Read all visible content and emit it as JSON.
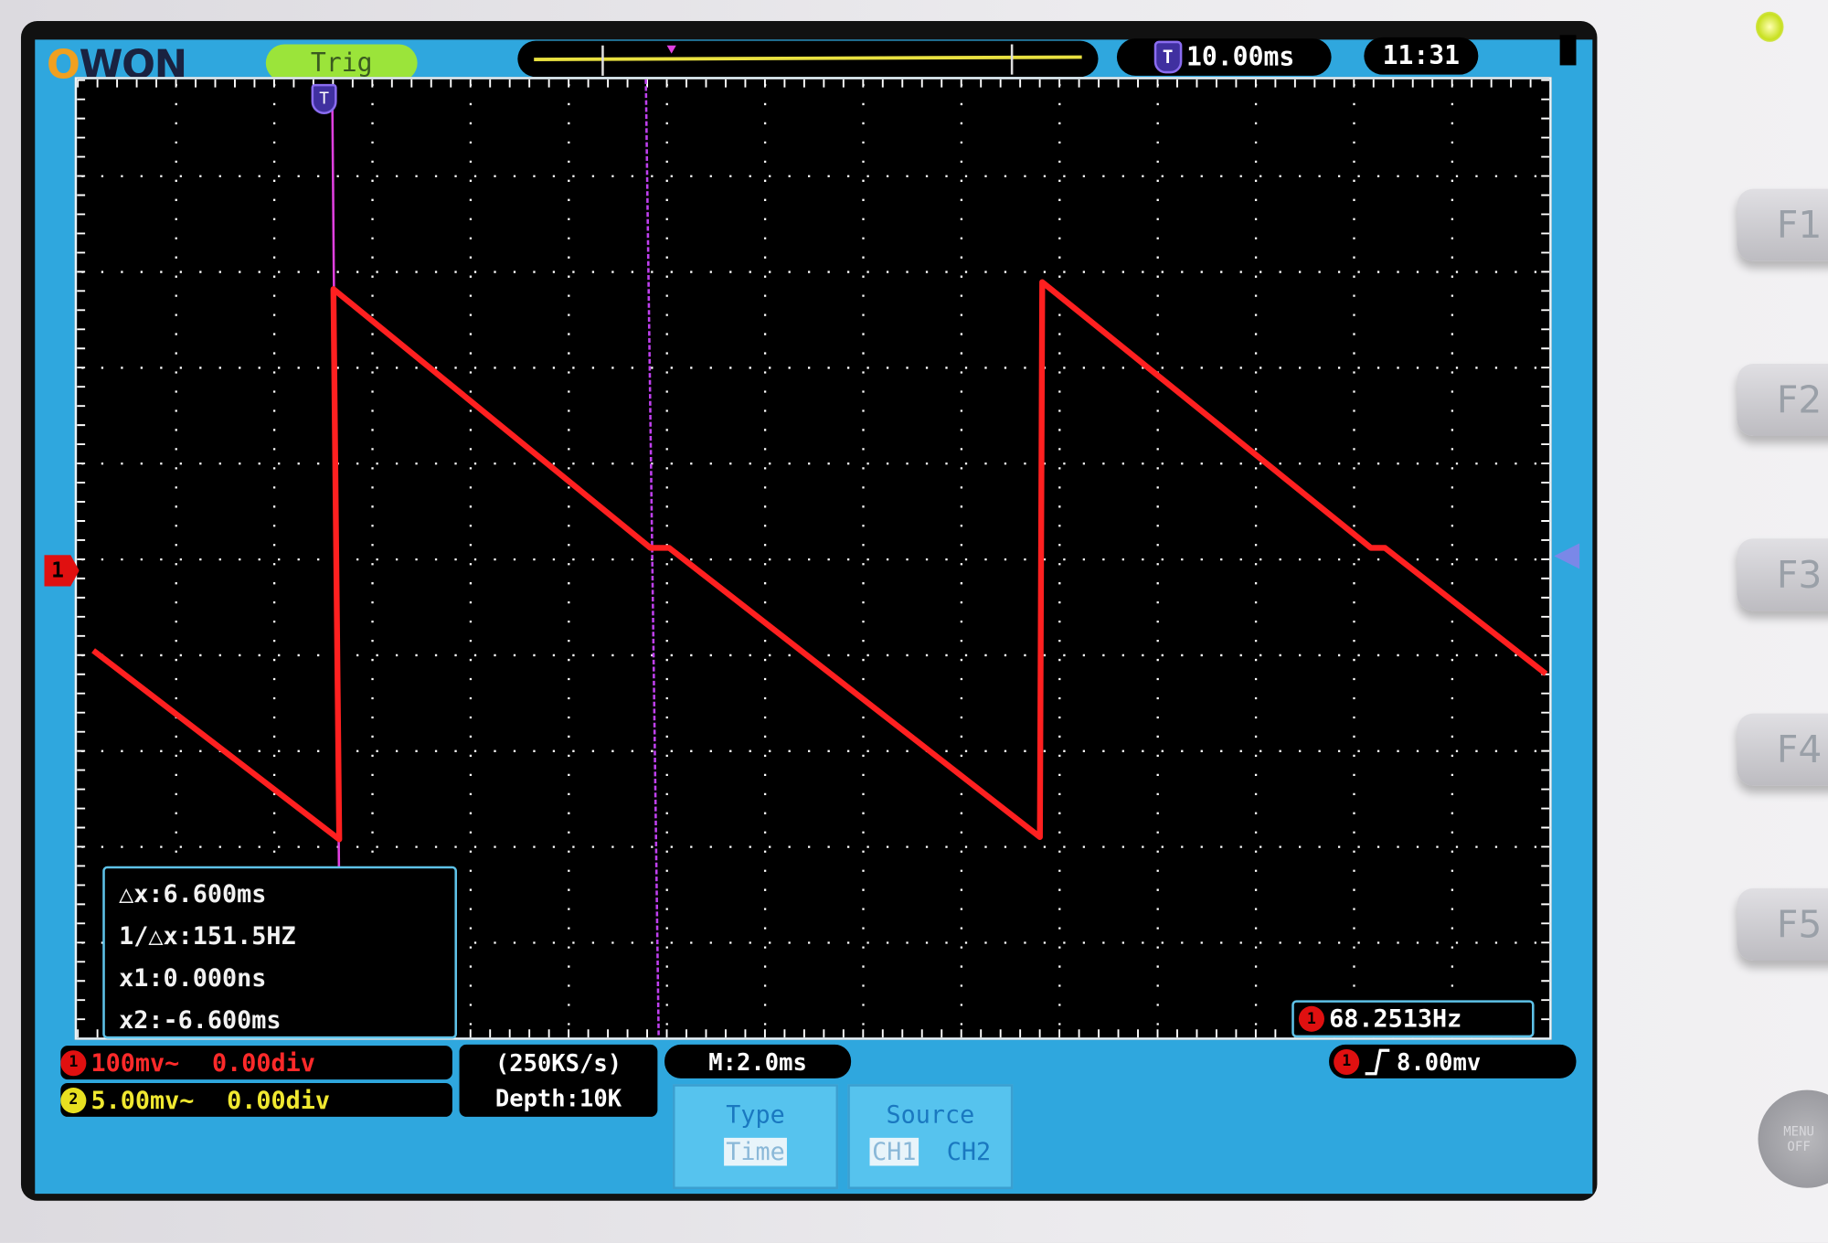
{
  "device": {
    "brand": "OWON",
    "function_keys": [
      "F1",
      "F2",
      "F3",
      "F4",
      "F5"
    ],
    "menu_off_label": [
      "MENU",
      "OFF"
    ]
  },
  "top_bar": {
    "logo_o": "O",
    "logo_rest": "WON",
    "trigger_status": "Trig",
    "trigger_time_icon": "T",
    "trigger_time": "10.00ms",
    "clock": "11:31"
  },
  "cursor_info": {
    "delta_x": "△x:6.600ms",
    "inv_delta_x": "1/△x:151.5HZ",
    "x1": "x1:0.000ns",
    "x2": "x2:-6.600ms"
  },
  "frequency": {
    "channel": "1",
    "value": "68.2513Hz"
  },
  "channels": [
    {
      "id": "1",
      "scale": "100mv~",
      "offset": "0.00div",
      "color": "#e01010"
    },
    {
      "id": "2",
      "scale": "5.00mv~",
      "offset": "0.00div",
      "color": "#e8e020"
    }
  ],
  "acquisition": {
    "sample_rate": "(250KS/s)",
    "depth": "Depth:10K"
  },
  "timebase": "M:2.0ms",
  "trigger": {
    "channel": "1",
    "edge_icon": "rising-edge",
    "level": "8.00mv"
  },
  "menu": {
    "type": {
      "title": "Type",
      "options": [
        "Time"
      ],
      "selected": "Time"
    },
    "source": {
      "title": "Source",
      "options": [
        "CH1",
        "CH2"
      ],
      "selected": "CH1"
    }
  },
  "markers": {
    "ch1": "1",
    "trigger_pos": "T"
  },
  "colors": {
    "screen_bg": "#2fa7de",
    "trace": "#ff2020",
    "cursor": "#e040e0",
    "grid": "#ffffff"
  }
}
